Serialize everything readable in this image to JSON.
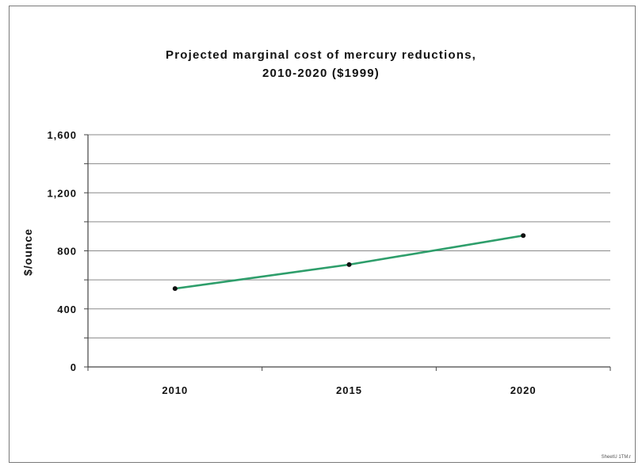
{
  "chart_data": {
    "type": "line",
    "title": "Projected marginal cost of mercury reductions,",
    "subtitle": "2010-2020 ($1999)",
    "xlabel": "",
    "ylabel": "$/ounce",
    "x": [
      "2010",
      "2015",
      "2020"
    ],
    "series": [
      {
        "values": [
          540,
          705,
          905
        ],
        "color": "#2e9e6b"
      }
    ],
    "ylim": [
      0,
      1600
    ],
    "y_ticks": [
      0,
      400,
      800,
      1200,
      1600
    ],
    "y_tick_labels": [
      "0",
      "400",
      "800",
      "1,200",
      "1,600"
    ],
    "grid": true,
    "legend": "none"
  },
  "footer_note": "SheetU 1TM.r"
}
